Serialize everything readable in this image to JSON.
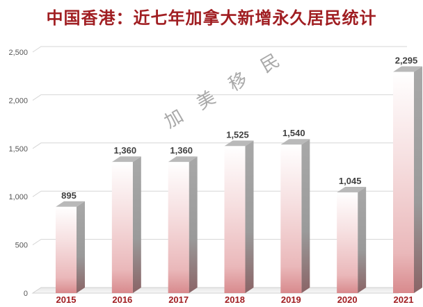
{
  "page": {
    "title": "中国香港：近七年加拿大新增永久居民统计"
  },
  "chart_data": {
    "type": "bar",
    "title": "中国香港：近七年加拿大新增永久居民统计",
    "categories": [
      "2015",
      "2016",
      "2017",
      "2018",
      "2019",
      "2020",
      "2021"
    ],
    "values": [
      895,
      1360,
      1360,
      1525,
      1540,
      1045,
      2295
    ],
    "data_labels": [
      "895",
      "1,360",
      "1,360",
      "1,525",
      "1,540",
      "1,045",
      "2,295"
    ],
    "y_ticks": [
      0,
      500,
      1000,
      1500,
      2000,
      2500
    ],
    "y_tick_labels": [
      "0",
      "500",
      "1,000",
      "1,500",
      "2,000",
      "2,500"
    ],
    "ylim": [
      0,
      2500
    ],
    "grid": true,
    "xlabel": "",
    "ylabel": "",
    "watermark": "加 美 移 民",
    "colors": {
      "title": "#a01e22",
      "category_label": "#a01e22",
      "bar_base": "#d88a8d",
      "bar_top": "#ffffff",
      "bar_side": "#8c8c8c"
    }
  }
}
